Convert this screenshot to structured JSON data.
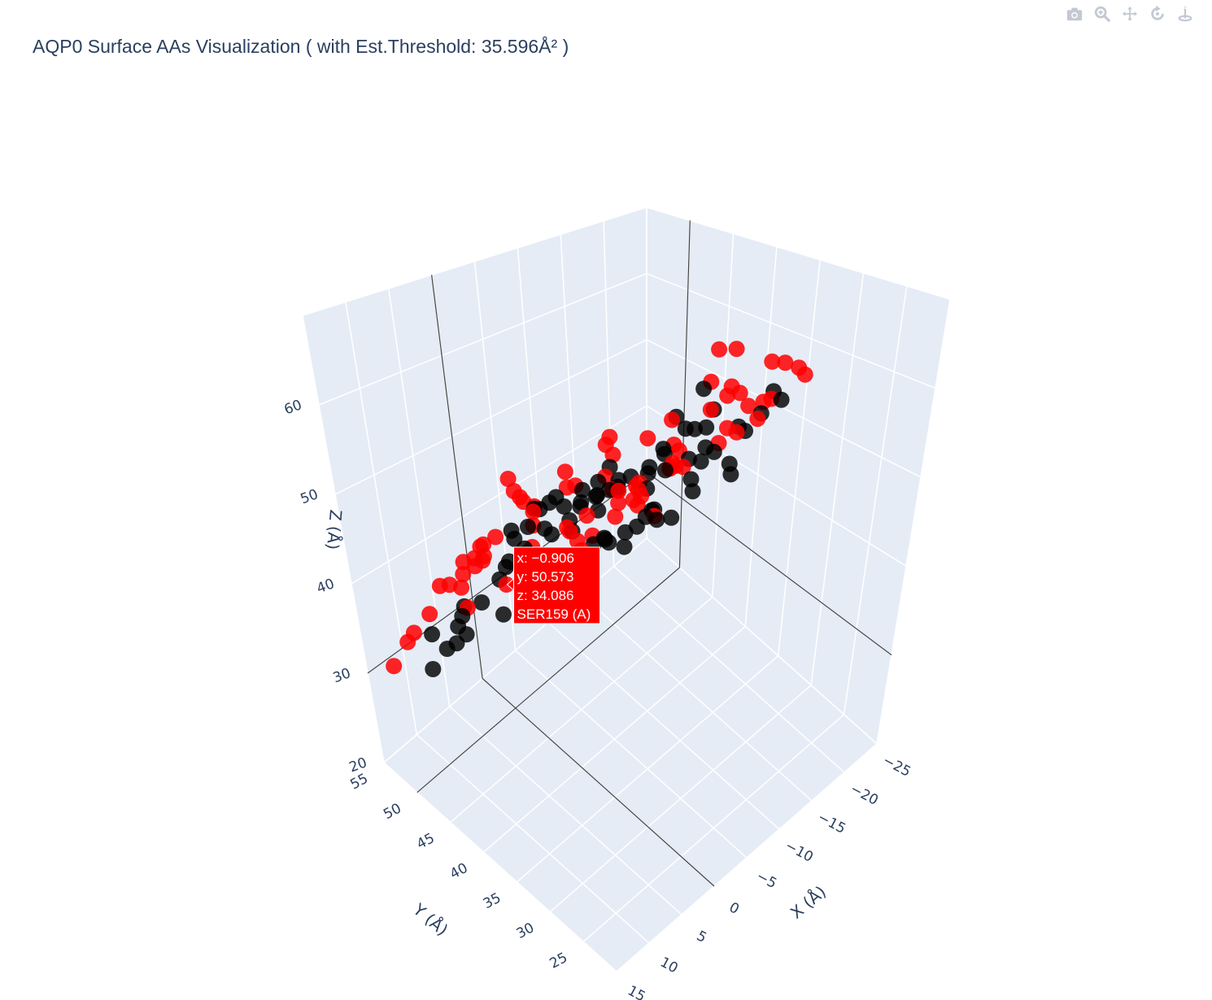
{
  "title": "AQP0 Surface AAs Visualization ( with Est.Threshold: 35.596Å² )",
  "modebar": [
    {
      "name": "camera-icon",
      "label": "Download plot as a png"
    },
    {
      "name": "zoom-icon",
      "label": "Zoom"
    },
    {
      "name": "pan-icon",
      "label": "Pan"
    },
    {
      "name": "orbit-rotation-icon",
      "label": "Orbital rotation"
    },
    {
      "name": "turntable-icon",
      "label": "Turntable rotation"
    }
  ],
  "colors": {
    "surface": "#ff0000",
    "buried": "#000000",
    "pane": "#e5ecf6",
    "grid": "#ffffff",
    "axis_line": "#444444",
    "text": "#2a3f5f"
  },
  "chart_data": {
    "type": "scatter3d",
    "title": "AQP0 Surface AAs Visualization ( with Est.Threshold: 35.596Å² )",
    "xlabel": "X (Å)",
    "ylabel": "Y (Å)",
    "zlabel": "Z (Å)",
    "x_ticks": [
      "−25",
      "−20",
      "−15",
      "−10",
      "−5",
      "0",
      "5",
      "10",
      "15"
    ],
    "y_ticks": [
      "25",
      "30",
      "35",
      "40",
      "45",
      "50",
      "55"
    ],
    "z_ticks": [
      "20",
      "30",
      "40",
      "50",
      "60"
    ],
    "xlim": [
      15,
      -25
    ],
    "ylim": [
      20,
      55
    ],
    "zlim": [
      20,
      70
    ],
    "grid": true,
    "legend": "none",
    "marker_colors": {
      "surface": "red",
      "buried": "black"
    },
    "hover": {
      "x": "−0.906",
      "y": "50.573",
      "z": "34.086",
      "label": "SER159 (A)"
    },
    "series": [
      {
        "key": "surface",
        "values": [
          [
            2.1,
            25.2,
            63.8
          ],
          [
            -0.5,
            27.4,
            61.9
          ],
          [
            -3.6,
            26.1,
            66.9
          ],
          [
            -5.8,
            28.3,
            67.9
          ],
          [
            -8.9,
            27.9,
            65.2
          ],
          [
            -11.4,
            29.2,
            61.8
          ],
          [
            -13.6,
            30.1,
            58.7
          ],
          [
            -15.8,
            30.9,
            63.9
          ],
          [
            -18.2,
            31.6,
            62.2
          ],
          [
            -21.3,
            32.8,
            59.4
          ],
          [
            -23.4,
            33.9,
            56.9
          ],
          [
            -19.6,
            35.1,
            55.1
          ],
          [
            -22.9,
            37.2,
            52.6
          ],
          [
            -17.8,
            38.6,
            49.2
          ],
          [
            -21.5,
            41.1,
            47.6
          ],
          [
            -24.1,
            42.3,
            44.8
          ],
          [
            -18.7,
            43.9,
            42.6
          ],
          [
            -20.6,
            46.7,
            39.8
          ],
          [
            -15.4,
            44.4,
            37.9
          ],
          [
            -17.1,
            48.4,
            35.6
          ],
          [
            -13.3,
            47.2,
            39.1
          ],
          [
            -10.8,
            45.1,
            40.2
          ],
          [
            -8.3,
            48.9,
            37.4
          ],
          [
            -5.6,
            46.3,
            36.1
          ],
          [
            -2.9,
            49.8,
            33.5
          ],
          [
            -0.906,
            50.573,
            34.086
          ],
          [
            -12.9,
            52.8,
            30.5
          ],
          [
            -15.1,
            53.6,
            31.9
          ],
          [
            0.8,
            51.8,
            37.2
          ],
          [
            2.4,
            53.1,
            35.6
          ],
          [
            3.9,
            49.4,
            39.8
          ],
          [
            6.3,
            50.7,
            38.1
          ],
          [
            8.1,
            52.2,
            34.7
          ],
          [
            10.4,
            53.5,
            31.9
          ],
          [
            12.2,
            54.1,
            29.8
          ],
          [
            11.9,
            50.4,
            35.8
          ],
          [
            9.3,
            48.6,
            40.9
          ],
          [
            6.7,
            46.1,
            44.3
          ],
          [
            9.8,
            44.2,
            46.6
          ],
          [
            11.2,
            42.7,
            43.1
          ],
          [
            13.6,
            40.5,
            47.9
          ],
          [
            12.4,
            38.3,
            52.1
          ],
          [
            14.3,
            36.1,
            55.6
          ],
          [
            10.6,
            34.9,
            59.7
          ],
          [
            12.8,
            33.2,
            62.4
          ],
          [
            7.9,
            31.8,
            61.2
          ],
          [
            9.6,
            30.1,
            64.7
          ],
          [
            4.6,
            29.6,
            60.5
          ],
          [
            6.2,
            27.8,
            66.1
          ],
          [
            1.3,
            30.4,
            57.2
          ],
          [
            -1.8,
            32.9,
            55.4
          ],
          [
            -4.2,
            35.6,
            53.1
          ],
          [
            -6.9,
            37.9,
            50.8
          ],
          [
            -8.7,
            39.5,
            47.3
          ],
          [
            -3.1,
            40.3,
            45.2
          ],
          [
            -0.3,
            41.8,
            42.6
          ],
          [
            3.1,
            43.5,
            40.9
          ],
          [
            0.6,
            44.2,
            47.7
          ],
          [
            -2.5,
            37.1,
            58.9
          ],
          [
            -6.4,
            33.4,
            60.8
          ],
          [
            -9.8,
            35.8,
            54.2
          ],
          [
            -12.5,
            39.1,
            51.7
          ],
          [
            -14.9,
            41.9,
            45.9
          ],
          [
            -11.1,
            44.9,
            43.4
          ],
          [
            -7.2,
            42.6,
            48.7
          ],
          [
            -4.7,
            45.4,
            42.2
          ],
          [
            -1.6,
            47.1,
            40.5
          ],
          [
            4.8,
            47.3,
            43.9
          ],
          [
            7.4,
            42.1,
            49.5
          ],
          [
            5.3,
            38.9,
            53.8
          ],
          [
            2.7,
            36.2,
            56.4
          ],
          [
            8.5,
            36.8,
            57.1
          ],
          [
            -16.8,
            36.4,
            57.9
          ],
          [
            -19.9,
            39.8,
            53.4
          ],
          [
            -14.2,
            33.6,
            65.1
          ],
          [
            -9.6,
            31.2,
            68.4
          ],
          [
            -6.1,
            41.3,
            53.9
          ],
          [
            1.9,
            45.8,
            51.3
          ],
          [
            -10.4,
            49.6,
            33.2
          ],
          [
            -6.6,
            51.3,
            30.6
          ],
          [
            4.2,
            40.4,
            50.2
          ],
          [
            -16.3,
            46.2,
            46.4
          ]
        ]
      },
      {
        "key": "buried",
        "values": [
          [
            -2.3,
            30.2,
            60.6
          ],
          [
            -5.1,
            31.6,
            62.7
          ],
          [
            -8.2,
            32.4,
            59.3
          ],
          [
            -10.6,
            33.8,
            62.1
          ],
          [
            -13.4,
            35.2,
            57.5
          ],
          [
            -6.9,
            34.9,
            56.4
          ],
          [
            -3.7,
            33.6,
            55.9
          ],
          [
            -0.2,
            34.8,
            57.8
          ],
          [
            2.9,
            33.1,
            58.6
          ],
          [
            5.4,
            34.3,
            54.9
          ],
          [
            -1.1,
            37.6,
            52.4
          ],
          [
            -4.6,
            38.4,
            50.9
          ],
          [
            -8.1,
            40.2,
            49.6
          ],
          [
            -11.7,
            41.4,
            48.1
          ],
          [
            -15.2,
            42.8,
            44.9
          ],
          [
            -12.3,
            37.5,
            54.6
          ],
          [
            -16.4,
            38.9,
            51.8
          ],
          [
            -9.4,
            43.1,
            46.8
          ],
          [
            -5.9,
            44.6,
            45.1
          ],
          [
            -2.1,
            43.9,
            48.2
          ],
          [
            1.6,
            42.2,
            49.7
          ],
          [
            4.1,
            41.6,
            46.3
          ],
          [
            7.2,
            40.1,
            51.3
          ],
          [
            9.5,
            38.7,
            49.2
          ],
          [
            6.8,
            37.3,
            55.2
          ],
          [
            3.7,
            38.6,
            53.6
          ],
          [
            0.9,
            39.7,
            51.1
          ],
          [
            -2.8,
            41.1,
            50.3
          ],
          [
            -7.4,
            46.3,
            42.7
          ],
          [
            -10.9,
            47.6,
            41.3
          ],
          [
            -13.8,
            48.9,
            39.4
          ],
          [
            -16.1,
            50.1,
            37.6
          ],
          [
            -4.3,
            48.1,
            40.6
          ],
          [
            -0.8,
            46.6,
            43.7
          ],
          [
            2.3,
            45.2,
            44.8
          ],
          [
            5.6,
            44.1,
            42.5
          ],
          [
            8.6,
            46.2,
            39.7
          ],
          [
            10.7,
            45.5,
            37.1
          ],
          [
            7.3,
            48.2,
            36.6
          ],
          [
            3.4,
            49.6,
            35.1
          ],
          [
            0.1,
            48.7,
            38.7
          ],
          [
            -3.4,
            50.2,
            37.3
          ],
          [
            -7.9,
            51.1,
            35.8
          ],
          [
            -11.8,
            52.3,
            32.9
          ],
          [
            -14.6,
            51.4,
            34.5
          ],
          [
            4.9,
            51.9,
            31.6
          ],
          [
            8.9,
            51.3,
            33.4
          ],
          [
            11.6,
            48.6,
            32.7
          ],
          [
            13.1,
            44.2,
            38.6
          ],
          [
            12.9,
            41.3,
            41.9
          ],
          [
            11.1,
            37.8,
            45.3
          ],
          [
            9.2,
            35.4,
            47.2
          ],
          [
            6.1,
            31.9,
            49.8
          ],
          [
            2.6,
            30.3,
            52.7
          ],
          [
            -1.9,
            28.9,
            54.3
          ],
          [
            -6.3,
            29.7,
            57.9
          ],
          [
            -9.9,
            28.8,
            60.4
          ],
          [
            -12.6,
            27.5,
            63.6
          ],
          [
            -15.7,
            29.4,
            60.1
          ],
          [
            -17.9,
            33.7,
            55.3
          ],
          [
            -19.4,
            36.9,
            50.7
          ],
          [
            -18.3,
            40.7,
            47.2
          ],
          [
            -20.2,
            44.6,
            42.3
          ],
          [
            -17.5,
            47.5,
            38.2
          ],
          [
            -14.3,
            45.7,
            36.4
          ],
          [
            -9.2,
            38.6,
            45.8
          ],
          [
            -5.2,
            40.9,
            43.4
          ],
          [
            -1.4,
            36.4,
            47.6
          ],
          [
            1.2,
            35.7,
            49.2
          ],
          [
            -3.3,
            32.1,
            51.6
          ],
          [
            -6.6,
            30.9,
            53.7
          ],
          [
            -10.2,
            31.9,
            55.8
          ],
          [
            -13.1,
            32.7,
            52.4
          ],
          [
            -11.2,
            35.6,
            50.1
          ],
          [
            -7.6,
            36.7,
            47.9
          ],
          [
            -4.9,
            35.1,
            49.4
          ],
          [
            -0.6,
            33.4,
            50.9
          ],
          [
            3.1,
            36.9,
            44.1
          ],
          [
            6.4,
            39.6,
            42.2
          ],
          [
            -15.9,
            35.1,
            48.3
          ],
          [
            -8.4,
            44.1,
            39.4
          ],
          [
            -2.4,
            45.7,
            36.3
          ]
        ]
      }
    ]
  }
}
